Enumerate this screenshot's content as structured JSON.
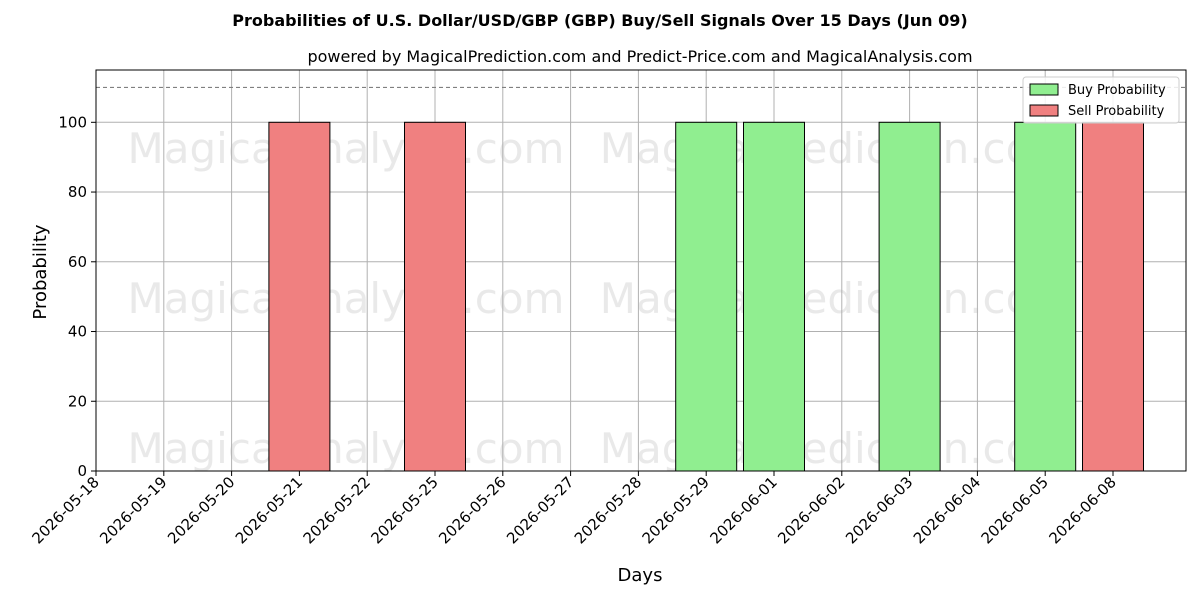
{
  "chart_data": {
    "type": "bar",
    "title": "Probabilities of U.S. Dollar/USD/GBP (GBP) Buy/Sell Signals Over 15 Days (Jun 09)",
    "subtitle": "powered by MagicalPrediction.com and Predict-Price.com and MagicalAnalysis.com",
    "xlabel": "Days",
    "ylabel": "Probability",
    "ylim": [
      0,
      115
    ],
    "yticks": [
      0,
      20,
      40,
      60,
      80,
      100
    ],
    "reference_line": 110,
    "grid": true,
    "legend_position": "top-right",
    "categories": [
      "2026-05-18",
      "2026-05-19",
      "2026-05-20",
      "2026-05-21",
      "2026-05-22",
      "2026-05-25",
      "2026-05-26",
      "2026-05-27",
      "2026-05-28",
      "2026-05-29",
      "2026-06-01",
      "2026-06-02",
      "2026-06-03",
      "2026-06-04",
      "2026-06-05",
      "2026-06-08"
    ],
    "series": [
      {
        "name": "Buy Probability",
        "color": "#90ee90",
        "values": [
          0,
          0,
          0,
          0,
          0,
          0,
          0,
          0,
          0,
          100,
          100,
          0,
          100,
          0,
          100,
          0
        ]
      },
      {
        "name": "Sell Probability",
        "color": "#f08080",
        "values": [
          0,
          0,
          0,
          100,
          0,
          100,
          0,
          0,
          0,
          0,
          0,
          0,
          0,
          0,
          0,
          100
        ]
      }
    ]
  },
  "watermarks": [
    "MagicalAnalysis.com",
    "MagicalPrediction.com"
  ]
}
